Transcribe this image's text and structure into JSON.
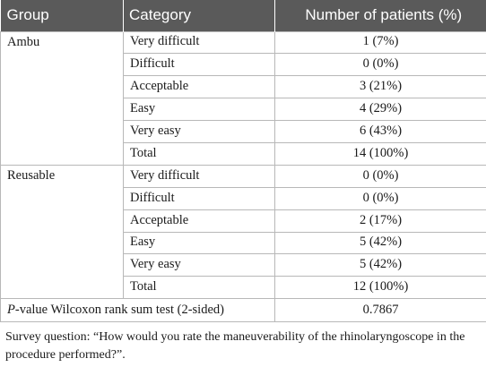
{
  "table": {
    "headers": [
      "Group",
      "Category",
      "Number of patients (%)"
    ],
    "groups": [
      {
        "name": "Ambu",
        "rows": [
          {
            "category": "Very difficult",
            "value": "1 (7%)"
          },
          {
            "category": "Difficult",
            "value": "0 (0%)"
          },
          {
            "category": "Acceptable",
            "value": "3 (21%)"
          },
          {
            "category": "Easy",
            "value": "4 (29%)"
          },
          {
            "category": "Very easy",
            "value": "6 (43%)"
          },
          {
            "category": "Total",
            "value": "14 (100%)"
          }
        ]
      },
      {
        "name": "Reusable",
        "rows": [
          {
            "category": "Very difficult",
            "value": "0 (0%)"
          },
          {
            "category": "Difficult",
            "value": "0 (0%)"
          },
          {
            "category": "Acceptable",
            "value": "2 (17%)"
          },
          {
            "category": "Easy",
            "value": "5 (42%)"
          },
          {
            "category": "Very easy",
            "value": "5 (42%)"
          },
          {
            "category": "Total",
            "value": "12 (100%)"
          }
        ]
      }
    ],
    "pvalue": {
      "label_italic": "P",
      "label_rest": "-value Wilcoxon rank sum test (2-sided)",
      "value": "0.7867"
    }
  },
  "footnote": "Survey question: “How would you rate the maneuverability of the rhinolaryngoscope in the procedure performed?”."
}
